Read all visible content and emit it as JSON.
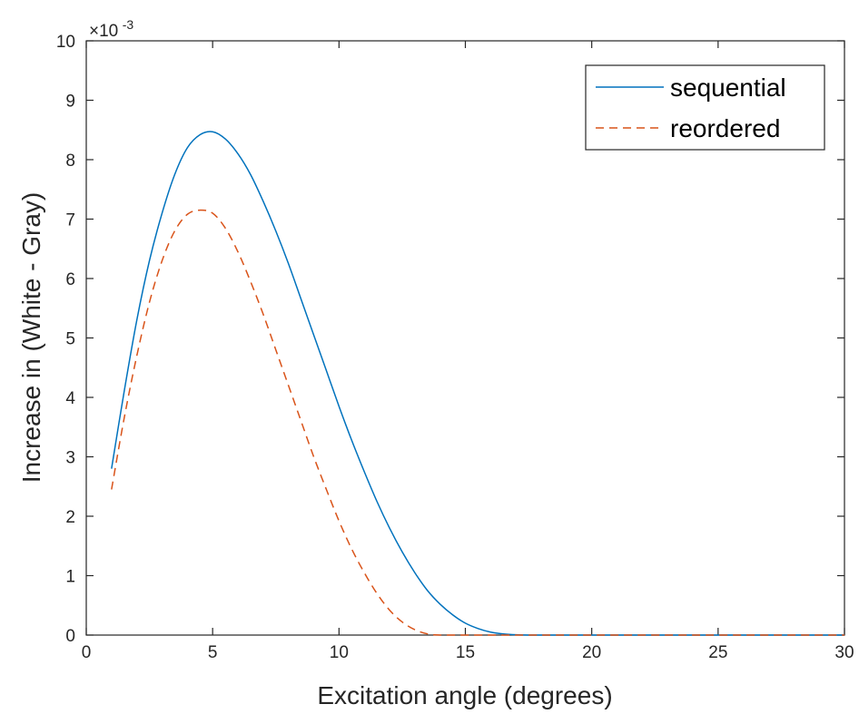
{
  "chart_data": {
    "type": "line",
    "xlabel": "Excitation angle (degrees)",
    "ylabel": "Increase in (White - Gray)",
    "xlim": [
      0,
      30
    ],
    "ylim": [
      0,
      10
    ],
    "y_exponent_label": {
      "base": "×10",
      "exp": "-3"
    },
    "xticks": [
      "0",
      "5",
      "10",
      "15",
      "20",
      "25",
      "30"
    ],
    "yticks": [
      "0",
      "1",
      "2",
      "3",
      "4",
      "5",
      "6",
      "7",
      "8",
      "9",
      "10"
    ],
    "grid": false,
    "legend_position": "top-right",
    "series": [
      {
        "name": "sequential",
        "color": "#0072BD",
        "style": "solid",
        "x": [
          1,
          1.5,
          2,
          2.5,
          3,
          3.5,
          4,
          4.5,
          5,
          5.5,
          6,
          6.5,
          7,
          7.5,
          8,
          8.5,
          9,
          9.5,
          10,
          10.5,
          11,
          11.5,
          12,
          12.5,
          13,
          13.5,
          14,
          14.5,
          15,
          15.5,
          16,
          16.5,
          17,
          17.5,
          18,
          18.5,
          19,
          20,
          22,
          24,
          26,
          28,
          30
        ],
        "y": [
          2.8,
          4.1,
          5.3,
          6.3,
          7.1,
          7.75,
          8.2,
          8.42,
          8.47,
          8.35,
          8.1,
          7.75,
          7.3,
          6.8,
          6.25,
          5.65,
          5.05,
          4.45,
          3.85,
          3.28,
          2.75,
          2.25,
          1.8,
          1.4,
          1.05,
          0.75,
          0.52,
          0.34,
          0.2,
          0.11,
          0.05,
          0.02,
          0.005,
          0,
          0,
          0,
          0,
          0,
          0,
          0,
          0,
          0,
          0
        ]
      },
      {
        "name": "reordered",
        "color": "#D95319",
        "style": "dashed",
        "x": [
          1,
          1.5,
          2,
          2.5,
          3,
          3.5,
          4,
          4.5,
          5,
          5.5,
          6,
          6.5,
          7,
          7.5,
          8,
          8.5,
          9,
          9.5,
          10,
          10.5,
          11,
          11.5,
          12,
          12.5,
          13,
          13.5,
          14,
          15,
          16,
          18,
          20,
          22,
          24,
          26,
          28,
          30
        ],
        "y": [
          2.45,
          3.65,
          4.7,
          5.6,
          6.3,
          6.8,
          7.08,
          7.15,
          7.1,
          6.85,
          6.45,
          5.95,
          5.4,
          4.8,
          4.2,
          3.6,
          3.0,
          2.45,
          1.92,
          1.45,
          1.05,
          0.7,
          0.42,
          0.22,
          0.09,
          0.02,
          0,
          0,
          0,
          0,
          0,
          0,
          0,
          0,
          0,
          0
        ]
      }
    ]
  }
}
